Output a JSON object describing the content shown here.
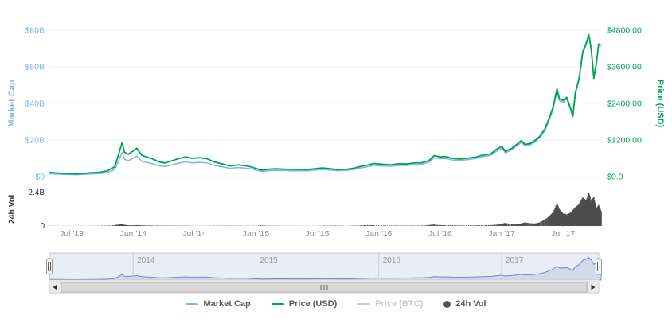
{
  "chart_data": {
    "type": "line",
    "title": "",
    "axes": {
      "left": {
        "title": "Market Cap",
        "color": "#7cb5ec",
        "max": 80,
        "ticks": [
          {
            "v": 0,
            "label": "$0"
          },
          {
            "v": 20,
            "label": "$20B"
          },
          {
            "v": 40,
            "label": "$40B"
          },
          {
            "v": 60,
            "label": "$60B"
          },
          {
            "v": 80,
            "label": "$80B"
          }
        ]
      },
      "right": {
        "title": "Price (USD)",
        "color": "#00a44f",
        "max": 4800,
        "ticks": [
          {
            "v": 0,
            "label": "$0.0"
          },
          {
            "v": 1200,
            "label": "$1200.00"
          },
          {
            "v": 2400,
            "label": "$2400.00"
          },
          {
            "v": 3600,
            "label": "$3600.00"
          },
          {
            "v": 4800,
            "label": "$4800.00"
          }
        ]
      },
      "volume": {
        "title": "24h Vol",
        "color": "#333333",
        "max": 2.4,
        "ticks": [
          {
            "v": 0,
            "label": "0"
          },
          {
            "v": 2.4,
            "label": "2.4B"
          }
        ]
      },
      "x": {
        "ticks": [
          {
            "year": 2013.5,
            "label": "Jul '13"
          },
          {
            "year": 2014.0,
            "label": "Jan '14"
          },
          {
            "year": 2014.5,
            "label": "Jul '14"
          },
          {
            "year": 2015.0,
            "label": "Jan '15"
          },
          {
            "year": 2015.5,
            "label": "Jul '15"
          },
          {
            "year": 2016.0,
            "label": "Jan '16"
          },
          {
            "year": 2016.5,
            "label": "Jul '16"
          },
          {
            "year": 2017.0,
            "label": "Jan '17"
          },
          {
            "year": 2017.5,
            "label": "Jul '17"
          }
        ]
      }
    },
    "xlim": [
      2013.3,
      2017.84
    ],
    "x_years": [
      2013.32,
      2013.37,
      2013.45,
      2013.54,
      2013.6,
      2013.66,
      2013.73,
      2013.79,
      2013.85,
      2013.88,
      2013.91,
      2013.93,
      2013.96,
      2014.0,
      2014.03,
      2014.07,
      2014.12,
      2014.16,
      2014.21,
      2014.26,
      2014.31,
      2014.37,
      2014.43,
      2014.48,
      2014.54,
      2014.6,
      2014.66,
      2014.73,
      2014.79,
      2014.85,
      2014.91,
      2014.96,
      2015.04,
      2015.1,
      2015.16,
      2015.23,
      2015.29,
      2015.35,
      2015.41,
      2015.48,
      2015.54,
      2015.6,
      2015.66,
      2015.73,
      2015.79,
      2015.85,
      2015.91,
      2015.96,
      2016.04,
      2016.1,
      2016.16,
      2016.23,
      2016.29,
      2016.35,
      2016.41,
      2016.45,
      2016.5,
      2016.54,
      2016.6,
      2016.66,
      2016.73,
      2016.79,
      2016.85,
      2016.91,
      2016.96,
      2017.0,
      2017.03,
      2017.08,
      2017.12,
      2017.16,
      2017.19,
      2017.23,
      2017.27,
      2017.31,
      2017.35,
      2017.39,
      2017.42,
      2017.45,
      2017.47,
      2017.5,
      2017.53,
      2017.56,
      2017.58,
      2017.6,
      2017.63,
      2017.66,
      2017.69,
      2017.71,
      2017.73,
      2017.75,
      2017.77,
      2017.79,
      2017.81
    ],
    "series": [
      {
        "name": "Market Cap",
        "axis": "left",
        "type": "line",
        "color": "#7cb5ec",
        "unit": "USD billions",
        "values": [
          1.5,
          1.34,
          1.13,
          1.03,
          1.2,
          1.44,
          1.63,
          2.16,
          3.77,
          8.27,
          13.27,
          9.5,
          8.69,
          10.05,
          11.16,
          8.43,
          7.63,
          7.05,
          5.87,
          5.53,
          6.29,
          7.33,
          8.12,
          7.53,
          7.83,
          7.49,
          6.13,
          5.27,
          4.53,
          4.94,
          4.71,
          4.21,
          2.85,
          3.19,
          3.41,
          3.3,
          3.18,
          3.23,
          3.15,
          3.51,
          3.95,
          3.62,
          3.22,
          3.34,
          3.82,
          4.7,
          5.44,
          6.18,
          5.79,
          5.67,
          6.14,
          6.1,
          6.58,
          6.76,
          7.91,
          10.33,
          9.78,
          9.95,
          9.1,
          8.76,
          9.35,
          9.85,
          10.98,
          11.58,
          14.04,
          15.57,
          13.02,
          14.49,
          16.59,
          18.7,
          16.83,
          17.21,
          18.86,
          21.16,
          24.92,
          31.45,
          37.18,
          46.66,
          41.38,
          40.66,
          42.38,
          36.76,
          32.56,
          45.06,
          52.89,
          67.32,
          72.43,
          76.8,
          68.67,
          53.52,
          61.41,
          72.3,
          71.6
        ]
      },
      {
        "name": "Price (USD)",
        "axis": "right",
        "type": "line",
        "color": "#00a44f",
        "unit": "USD",
        "values": [
          135,
          120,
          100,
          90,
          105,
          125,
          140,
          185,
          320,
          700,
          1120,
          800,
          730,
          840,
          930,
          700,
          630,
          580,
          480,
          450,
          510,
          590,
          650,
          600,
          620,
          590,
          480,
          410,
          350,
          380,
          360,
          320,
          215,
          240,
          255,
          245,
          235,
          237,
          230,
          255,
          285,
          260,
          230,
          237,
          270,
          330,
          380,
          430,
          400,
          390,
          420,
          415,
          445,
          455,
          530,
          690,
          650,
          660,
          600,
          575,
          610,
          640,
          710,
          745,
          900,
          995,
          830,
          920,
          1050,
          1180,
          1060,
          1080,
          1180,
          1320,
          1550,
          1950,
          2300,
          2880,
          2550,
          2500,
          2600,
          2250,
          1990,
          2750,
          3220,
          4090,
          4390,
          4650,
          4150,
          3230,
          3700,
          4350,
          4300
        ]
      },
      {
        "name": "Price (BTC)",
        "axis": "right",
        "type": "line",
        "color": "#cccccc",
        "disabled": true,
        "values": []
      },
      {
        "name": "24h Vol",
        "axis": "volume",
        "type": "column",
        "color": "#4d4d4d",
        "unit": "USD billions",
        "values": [
          0.01,
          0.01,
          0.01,
          0.01,
          0.01,
          0.01,
          0.02,
          0.03,
          0.06,
          0.1,
          0.13,
          0.08,
          0.05,
          0.05,
          0.06,
          0.05,
          0.03,
          0.03,
          0.03,
          0.02,
          0.02,
          0.02,
          0.02,
          0.01,
          0.01,
          0.01,
          0.02,
          0.02,
          0.02,
          0.02,
          0.01,
          0.01,
          0.05,
          0.02,
          0.02,
          0.01,
          0.01,
          0.01,
          0.01,
          0.01,
          0.02,
          0.02,
          0.03,
          0.01,
          0.02,
          0.04,
          0.06,
          0.05,
          0.04,
          0.03,
          0.04,
          0.03,
          0.03,
          0.04,
          0.07,
          0.11,
          0.06,
          0.05,
          0.05,
          0.04,
          0.04,
          0.05,
          0.05,
          0.06,
          0.1,
          0.16,
          0.22,
          0.12,
          0.12,
          0.18,
          0.26,
          0.2,
          0.18,
          0.26,
          0.45,
          0.72,
          1.0,
          1.62,
          1.2,
          0.9,
          0.82,
          0.95,
          1.12,
          1.35,
          1.55,
          2.05,
          1.85,
          2.4,
          1.75,
          2.1,
          1.25,
          1.5,
          1.05
        ]
      }
    ],
    "navigator": {
      "year_labels": [
        {
          "year": 2014,
          "label": "2014"
        },
        {
          "year": 2015,
          "label": "2015"
        },
        {
          "year": 2016,
          "label": "2016"
        },
        {
          "year": 2017,
          "label": "2017"
        }
      ],
      "left_handle_icon": "drag-handle",
      "right_handle_icon": "drag-handle"
    },
    "scrollbar": {
      "left_arrow_icon": "left-arrow",
      "right_arrow_icon": "right-arrow",
      "thumb_grip_icon": "grip-lines"
    },
    "legend": {
      "position": "bottom-center",
      "items": [
        {
          "label": "Market Cap",
          "color": "#7cb5ec",
          "marker": "line",
          "disabled": false
        },
        {
          "label": "Price (USD)",
          "color": "#00a44f",
          "marker": "line",
          "disabled": false
        },
        {
          "label": "Price (BTC)",
          "color": "#cccccc",
          "marker": "line",
          "disabled": true
        },
        {
          "label": "24h Vol",
          "color": "#545454",
          "marker": "circle",
          "disabled": false
        }
      ]
    },
    "grid": "horizontal-faint"
  }
}
